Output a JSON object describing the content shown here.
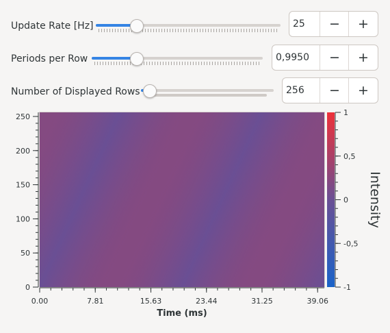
{
  "controls": {
    "update_rate": {
      "label": "Update Rate [Hz]",
      "value": "25",
      "slider_fraction": 0.22
    },
    "periods_per_row": {
      "label": "Periods per Row",
      "value": "0,9950",
      "slider_fraction": 0.26
    },
    "displayed_rows": {
      "label": "Number of Displayed Rows",
      "value": "256",
      "slider_fraction": 0.06
    },
    "decrement_symbol": "−",
    "increment_symbol": "+"
  },
  "colors": {
    "high": "#ee3139",
    "mid": "#6a4f94",
    "low": "#1a63c9",
    "accent": "#3584e4"
  },
  "chart_data": {
    "type": "heatmap",
    "xlabel": "Time (ms)",
    "ylabel": "",
    "colorbar_label": "Intensity",
    "xlim": [
      0,
      40
    ],
    "ylim": [
      0,
      256
    ],
    "zlim": [
      -1,
      1
    ],
    "x_ticks": [
      "0.00",
      "7.81",
      "15.63",
      "23.44",
      "31.25",
      "39.06"
    ],
    "x_tick_values": [
      0,
      7.81,
      15.63,
      23.44,
      31.25,
      39.06
    ],
    "y_ticks": [
      "0",
      "50",
      "100",
      "150",
      "200",
      "250"
    ],
    "y_tick_values": [
      0,
      50,
      100,
      150,
      200,
      250
    ],
    "colorbar_ticks": [
      "1",
      "0,5",
      "0",
      "-0,5",
      "-1"
    ],
    "colorbar_tick_values": [
      1,
      0.5,
      0,
      -0.5,
      -1
    ],
    "signal": {
      "function": "cos",
      "period_ms": 40,
      "periods_per_row": 0.995,
      "rows": 256
    }
  }
}
